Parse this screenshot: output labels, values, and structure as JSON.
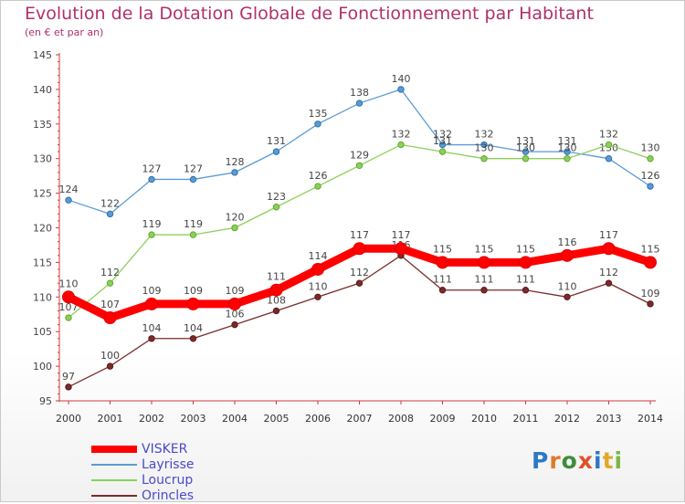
{
  "header": {
    "title": "Evolution de la Dotation Globale de Fonctionnement par Habitant",
    "subtitle": "(en € et par an)"
  },
  "logo": {
    "text": "Proxiti",
    "letters": [
      {
        "ch": "P",
        "color": "#2e78c8"
      },
      {
        "ch": "r",
        "color": "#e07a2a"
      },
      {
        "ch": "o",
        "color": "#3f8d3a"
      },
      {
        "ch": "x",
        "color": "#e0502a"
      },
      {
        "ch": "i",
        "color": "#2e78c8"
      },
      {
        "ch": "t",
        "color": "#e0a82a"
      },
      {
        "ch": "i",
        "color": "#7ab648"
      }
    ]
  },
  "chart_data": {
    "type": "line",
    "x": [
      "2000",
      "2001",
      "2002",
      "2003",
      "2004",
      "2005",
      "2006",
      "2007",
      "2008",
      "2009",
      "2010",
      "2011",
      "2012",
      "2013",
      "2014"
    ],
    "ylim": [
      95,
      145
    ],
    "yticks": [
      95,
      100,
      105,
      110,
      115,
      120,
      125,
      130,
      135,
      140,
      145
    ],
    "grid": false,
    "legend_position": "bottom-left",
    "series": [
      {
        "name": "Layrisse",
        "color": "#5b9bd5",
        "values": [
          124,
          122,
          127,
          127,
          128,
          131,
          135,
          138,
          140,
          132,
          132,
          131,
          131,
          130,
          126
        ]
      },
      {
        "name": "Loucrup",
        "color": "#8cd05a",
        "values": [
          107,
          112,
          119,
          119,
          120,
          123,
          126,
          129,
          132,
          131,
          130,
          130,
          130,
          132,
          130
        ]
      },
      {
        "name": "Orincles",
        "color": "#7b2b2b",
        "values": [
          97,
          100,
          104,
          104,
          106,
          108,
          110,
          112,
          116,
          111,
          111,
          111,
          110,
          112,
          109
        ]
      },
      {
        "name": "VISKER",
        "color": "#ff0000",
        "values": [
          110,
          107,
          109,
          109,
          109,
          111,
          114,
          117,
          117,
          115,
          115,
          115,
          116,
          117,
          115
        ]
      }
    ],
    "legend_order": [
      "VISKER",
      "Layrisse",
      "Loucrup",
      "Orincles"
    ]
  }
}
